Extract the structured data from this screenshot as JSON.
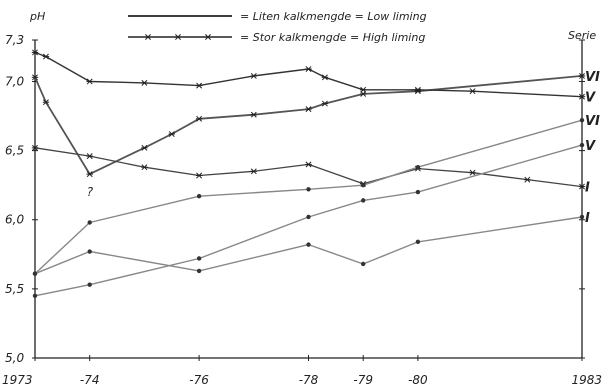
{
  "legend": {
    "low": "= Liten kalkmengde = Low liming",
    "high": "= Stor kalkmengde = High liming"
  },
  "chart_data": {
    "type": "line",
    "title": "",
    "ylabel": "pH",
    "right_axis_label": "Serie",
    "xlabel": "",
    "ylim": [
      5.0,
      7.3
    ],
    "yticks": [
      5.0,
      5.5,
      6.0,
      6.5,
      7.0,
      7.3
    ],
    "ytick_labels": [
      "5,0",
      "5,5",
      "6,0",
      "6,5",
      "7,0",
      "7,3"
    ],
    "xlim": [
      1973,
      1983
    ],
    "xticks": [
      1973,
      1974,
      1976,
      1978,
      1979,
      1980,
      1983
    ],
    "xtick_labels": [
      "1973",
      "-74",
      "-76",
      "-78",
      "-79",
      "-80",
      "1983"
    ],
    "legend_position": "top-center",
    "grid": false,
    "series": [
      {
        "name": "VI",
        "liming": "high",
        "line_color": "#555555",
        "line_width": 1.8,
        "x": [
          1973,
          1973.2,
          1974,
          1975,
          1975.5,
          1976,
          1977,
          1978,
          1978.3,
          1979,
          1980,
          1983
        ],
        "y": [
          7.03,
          6.85,
          6.33,
          6.52,
          6.62,
          6.73,
          6.76,
          6.8,
          6.84,
          6.91,
          6.93,
          7.04
        ]
      },
      {
        "name": "V",
        "liming": "high",
        "line_color": "#333333",
        "line_width": 1.4,
        "x": [
          1973,
          1973.2,
          1974,
          1975,
          1976,
          1977,
          1978,
          1978.3,
          1979,
          1980,
          1981,
          1983
        ],
        "y": [
          7.21,
          7.18,
          7.0,
          6.99,
          6.97,
          7.04,
          7.09,
          7.03,
          6.94,
          6.94,
          6.93,
          6.89
        ]
      },
      {
        "name": "I",
        "liming": "high",
        "line_color": "#444444",
        "line_width": 1.3,
        "x": [
          1973,
          1974,
          1975,
          1976,
          1977,
          1978,
          1979,
          1980,
          1981,
          1982,
          1983
        ],
        "y": [
          6.52,
          6.46,
          6.38,
          6.32,
          6.35,
          6.4,
          6.26,
          6.37,
          6.34,
          6.29,
          6.24
        ]
      },
      {
        "name": "VI",
        "liming": "low",
        "line_color": "#888888",
        "line_width": 1.4,
        "x": [
          1973,
          1974,
          1976,
          1978,
          1979,
          1980,
          1983
        ],
        "y": [
          5.61,
          5.98,
          6.17,
          6.22,
          6.25,
          6.38,
          6.72
        ]
      },
      {
        "name": "V",
        "liming": "low",
        "line_color": "#888888",
        "line_width": 1.4,
        "x": [
          1973,
          1974,
          1976,
          1978,
          1979,
          1980,
          1983
        ],
        "y": [
          5.45,
          5.53,
          5.72,
          6.02,
          6.14,
          6.2,
          6.54
        ]
      },
      {
        "name": "I",
        "liming": "low",
        "line_color": "#888888",
        "line_width": 1.4,
        "x": [
          1973,
          1974,
          1976,
          1978,
          1979,
          1980,
          1983
        ],
        "y": [
          5.61,
          5.77,
          5.63,
          5.82,
          5.68,
          5.84,
          6.02
        ]
      }
    ],
    "series_end_labels": [
      "VI",
      "V",
      "VI",
      "V",
      "I",
      "I"
    ],
    "annotations": [
      {
        "text": "?",
        "x": 1974,
        "y": 6.2
      }
    ]
  }
}
